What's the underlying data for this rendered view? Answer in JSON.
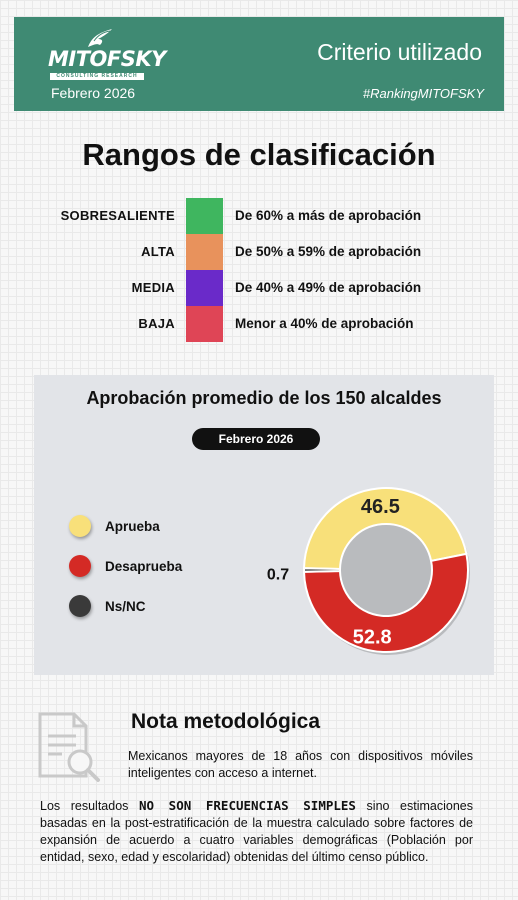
{
  "header": {
    "logo_text": "MITOFSKY",
    "logo_subtitle": "CONSULTING RESEARCH",
    "title": "Criterio utilizado",
    "date": "Febrero  2026",
    "hashtag": "#RankingMITOFSKY",
    "background_color": "#3f8a73"
  },
  "ranges": {
    "title": "Rangos de clasificación",
    "items": [
      {
        "label": "SOBRESALIENTE",
        "description": "De 60% a más de aprobación",
        "color": "#3fb65f"
      },
      {
        "label": "ALTA",
        "description": "De 50% a 59% de aprobación",
        "color": "#e8925c"
      },
      {
        "label": "MEDIA",
        "description": "De 40% a 49% de aprobación",
        "color": "#6a2ac9"
      },
      {
        "label": "BAJA",
        "description": "Menor a 40% de aprobación",
        "color": "#df4556"
      }
    ]
  },
  "chart_data": {
    "type": "pie",
    "title": "Aprobación promedio de los 150 alcaldes",
    "period": "Febrero  2026",
    "legend_position": "left",
    "series": [
      {
        "name": "Aprueba",
        "value": 46.5,
        "label": "46.5",
        "color": "#f8e07a"
      },
      {
        "name": "Desaprueba",
        "value": 52.8,
        "label": "52.8",
        "color": "#d42a25"
      },
      {
        "name": "Ns/NC",
        "value": 0.7,
        "label": "0.7",
        "color": "#3a3a3a"
      }
    ]
  },
  "note": {
    "title": "Nota metodológica",
    "text1": "Mexicanos mayores de 18 años con dispositivos móviles inteligentes con acceso a internet.",
    "text2_prefix": "Los resultados ",
    "text2_strong": "NO SON FRECUENCIAS SIMPLES",
    "text2_suffix": " sino estimaciones basadas en la post-estratificación de la muestra calculado sobre factores de expansión de acuerdo a cuatro variables demográficas (Población por entidad, sexo, edad y escolaridad) obtenidas del último censo público.",
    "icon": "document-search-icon"
  }
}
